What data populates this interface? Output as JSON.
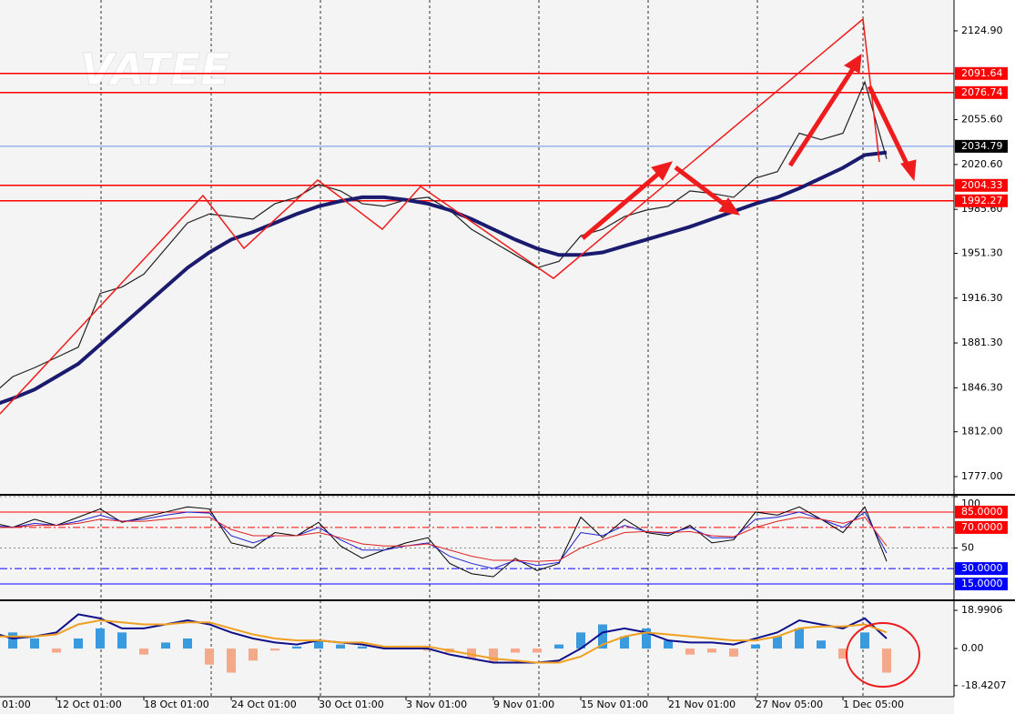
{
  "chart_data": [
    {
      "type": "line",
      "watermark": "VATEE",
      "categories": [
        "01:00",
        null,
        null,
        null,
        "12 Oct 01:00",
        null,
        null,
        null,
        "18 Oct 01:00",
        null,
        null,
        null,
        "24 Oct 01:00",
        null,
        null,
        null,
        "30 Oct 01:00",
        null,
        null,
        null,
        "3 Nov 01:00",
        null,
        null,
        null,
        "9 Nov 01:00",
        null,
        null,
        null,
        "15 Nov 01:00",
        null,
        null,
        null,
        "21 Nov 01:00",
        null,
        null,
        null,
        "27 Nov 05:00",
        null,
        null,
        null,
        "1 Dec 05:00",
        null,
        null
      ],
      "series": [
        {
          "color": "#222222",
          "width": 1.2,
          "values": [
            1835,
            1840,
            1855,
            1862,
            1870,
            1878,
            1920,
            1925,
            1935,
            1955,
            1975,
            1982,
            1980,
            1978,
            1990,
            1995,
            2005,
            2000,
            1990,
            1988,
            1993,
            1995,
            1985,
            1970,
            1960,
            1950,
            1940,
            1945,
            1965,
            1970,
            1980,
            1985,
            1988,
            2000,
            1998,
            1995,
            2010,
            2015,
            2045,
            2040,
            2045,
            2085,
            2025
          ]
        },
        {
          "color": "#1a1a6e",
          "width": 4,
          "values": [
            1828,
            1832,
            1838,
            1845,
            1855,
            1865,
            1880,
            1895,
            1910,
            1925,
            1940,
            1952,
            1962,
            1968,
            1975,
            1982,
            1988,
            1992,
            1995,
            1995,
            1993,
            1990,
            1985,
            1978,
            1970,
            1962,
            1955,
            1950,
            1950,
            1952,
            1957,
            1962,
            1967,
            1972,
            1978,
            1984,
            1990,
            1995,
            2002,
            2010,
            2018,
            2028,
            2030
          ]
        }
      ],
      "ylim": [
        1763.5,
        2149.0
      ],
      "yticks": [
        {
          "value": 2124.9,
          "label": "2124.90"
        },
        {
          "value": 2055.6,
          "label": "2055.60"
        },
        {
          "value": 2020.6,
          "label": "2020.60"
        },
        {
          "value": 1985.6,
          "label": "1985.60"
        },
        {
          "value": 1951.3,
          "label": "1951.30"
        },
        {
          "value": 1916.3,
          "label": "1916.30"
        },
        {
          "value": 1881.3,
          "label": "1881.30"
        },
        {
          "value": 1846.3,
          "label": "1846.30"
        },
        {
          "value": 1812,
          "label": "1812.00"
        },
        {
          "value": 1777,
          "label": "1777.00"
        }
      ],
      "levels": [
        2091.64,
        2076.74,
        2004.33,
        1992.27
      ],
      "level_color": "#ff0000",
      "bid": 2034.79,
      "bid_color": "#3a6ff0"
    },
    {
      "type": "line",
      "series": [
        {
          "color": "#000000",
          "width": 1,
          "values": [
            75,
            75,
            70,
            78,
            72,
            80,
            88,
            75,
            80,
            85,
            90,
            88,
            55,
            50,
            65,
            62,
            75,
            52,
            40,
            48,
            55,
            60,
            35,
            25,
            22,
            40,
            28,
            35,
            80,
            60,
            78,
            65,
            62,
            72,
            55,
            58,
            85,
            82,
            90,
            78,
            65,
            90,
            37
          ]
        },
        {
          "color": "#1f1fd0",
          "width": 1,
          "values": [
            72,
            72,
            70,
            74,
            72,
            76,
            82,
            76,
            78,
            82,
            85,
            84,
            62,
            55,
            62,
            62,
            70,
            58,
            48,
            48,
            52,
            55,
            42,
            35,
            30,
            38,
            33,
            36,
            65,
            62,
            72,
            66,
            64,
            70,
            60,
            60,
            78,
            80,
            85,
            78,
            70,
            85,
            45
          ]
        },
        {
          "color": "#e02020",
          "width": 1,
          "values": [
            70,
            70,
            70,
            72,
            72,
            74,
            78,
            76,
            76,
            78,
            80,
            80,
            68,
            62,
            62,
            62,
            65,
            60,
            54,
            52,
            52,
            54,
            48,
            42,
            38,
            38,
            37,
            38,
            50,
            58,
            65,
            66,
            65,
            66,
            62,
            61,
            70,
            76,
            80,
            78,
            74,
            80,
            52
          ]
        }
      ],
      "ylim": [
        0,
        100
      ],
      "yticks": [
        100,
        50
      ],
      "levels": [
        {
          "value": 85,
          "label": "85.0000",
          "color": "#ff0000",
          "style": "solid"
        },
        {
          "value": 70,
          "label": "70.0000",
          "color": "#ff0000",
          "style": "dashdot"
        },
        {
          "value": 30,
          "label": "30.0000",
          "color": "#0000ff",
          "style": "dashdot"
        },
        {
          "value": 15,
          "label": "15.0000",
          "color": "#0000ff",
          "style": "solid"
        }
      ]
    },
    {
      "type": "macd",
      "histogram": [
        10,
        12,
        8,
        5,
        -2,
        5,
        10,
        8,
        -3,
        3,
        5,
        -8,
        -12,
        -6,
        -1,
        1,
        4,
        2,
        1,
        1,
        0.5,
        -1,
        -2,
        -5,
        -7,
        -2,
        -2,
        2,
        8,
        12,
        6,
        10,
        4,
        -3,
        -2,
        -4,
        2,
        6,
        10,
        4,
        -5,
        8,
        -12
      ],
      "pos_color": "#3a9ae0",
      "neg_color": "#f5a98a",
      "series": [
        {
          "color": "#10108a",
          "width": 2,
          "values": [
            10,
            8,
            5,
            6,
            8,
            17,
            15,
            10,
            10,
            12,
            14,
            12,
            8,
            5,
            3,
            2,
            4,
            3,
            2,
            0,
            0,
            0,
            -3,
            -5,
            -7,
            -7,
            -7,
            -6,
            0,
            8,
            10,
            8,
            4,
            3,
            3,
            2,
            5,
            8,
            14,
            12,
            10,
            15,
            5
          ]
        },
        {
          "color": "#f0a020",
          "width": 2,
          "values": [
            5,
            6,
            6,
            6,
            7,
            12,
            14,
            13,
            12,
            12,
            13,
            13,
            10,
            7,
            5,
            4,
            4,
            3,
            3,
            1,
            1,
            1,
            -1,
            -3,
            -5,
            -6,
            -7,
            -7,
            -4,
            2,
            6,
            8,
            7,
            6,
            5,
            4,
            4,
            6,
            10,
            11,
            11,
            12,
            8
          ]
        }
      ],
      "ylim": [
        -23.5,
        23.07
      ],
      "yticks": [
        18.9906,
        {
          "value": 0,
          "label": "0.00"
        },
        -18.4207
      ]
    }
  ]
}
